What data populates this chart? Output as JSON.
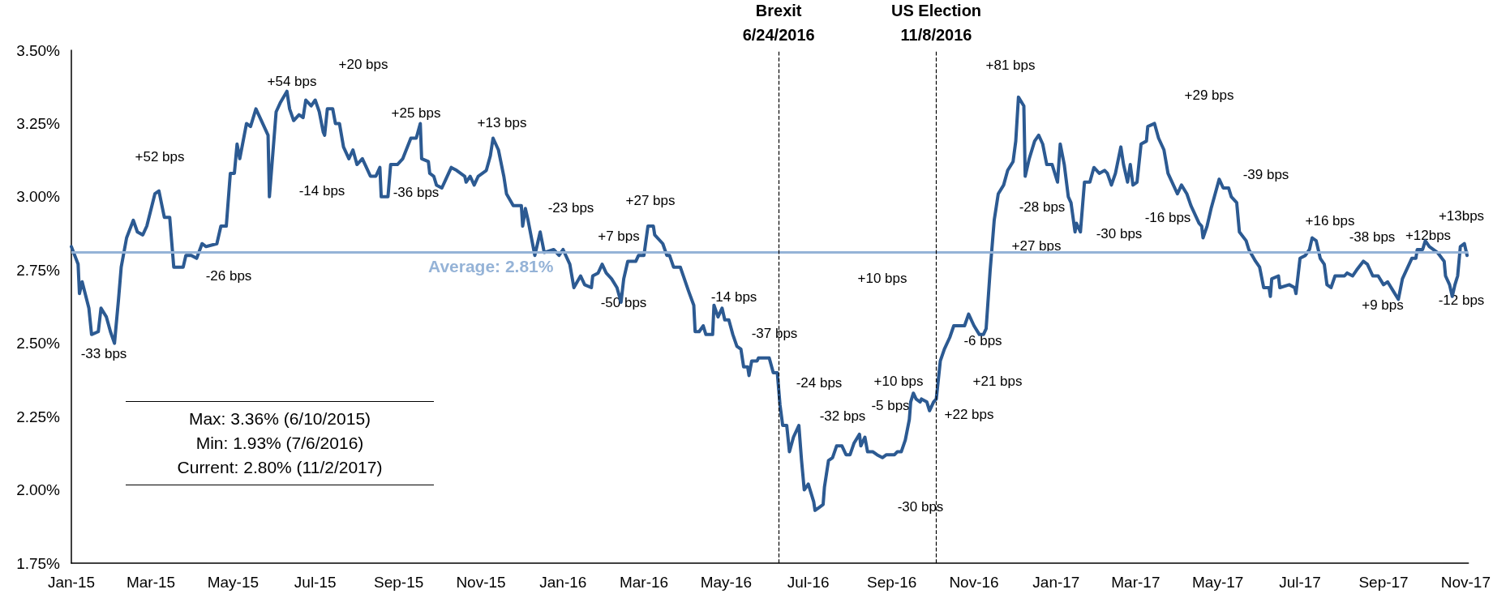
{
  "chart_data": {
    "type": "line",
    "xlim": [
      "2015-01-01",
      "2017-11-03"
    ],
    "ylim": [
      1.75,
      3.5
    ],
    "yticks": [
      {
        "value": 1.75,
        "label": "1.75%"
      },
      {
        "value": 2,
        "label": "2.00%"
      },
      {
        "value": 2.25,
        "label": "2.25%"
      },
      {
        "value": 2.5,
        "label": "2.50%"
      },
      {
        "value": 2.75,
        "label": "2.75%"
      },
      {
        "value": 3,
        "label": "3.00%"
      },
      {
        "value": 3.25,
        "label": "3.25%"
      },
      {
        "value": 3.5,
        "label": "3.50%"
      }
    ],
    "xticks": [
      {
        "value": "2015-01-01",
        "label": "Jan-15"
      },
      {
        "value": "2015-03-01",
        "label": "Mar-15"
      },
      {
        "value": "2015-05-01",
        "label": "May-15"
      },
      {
        "value": "2015-07-01",
        "label": "Jul-15"
      },
      {
        "value": "2015-09-01",
        "label": "Sep-15"
      },
      {
        "value": "2015-11-01",
        "label": "Nov-15"
      },
      {
        "value": "2016-01-01",
        "label": "Jan-16"
      },
      {
        "value": "2016-03-01",
        "label": "Mar-16"
      },
      {
        "value": "2016-05-01",
        "label": "May-16"
      },
      {
        "value": "2016-07-01",
        "label": "Jul-16"
      },
      {
        "value": "2016-09-01",
        "label": "Sep-16"
      },
      {
        "value": "2016-11-01",
        "label": "Nov-16"
      },
      {
        "value": "2017-01-01",
        "label": "Jan-17"
      },
      {
        "value": "2017-03-01",
        "label": "Mar-17"
      },
      {
        "value": "2017-05-01",
        "label": "May-17"
      },
      {
        "value": "2017-07-01",
        "label": "Jul-17"
      },
      {
        "value": "2017-09-01",
        "label": "Sep-17"
      },
      {
        "value": "2017-11-01",
        "label": "Nov-17"
      }
    ],
    "grid": false,
    "marker": "none",
    "line_style": "solid",
    "series": [
      {
        "color": "#2c5a92",
        "x": [
          "2015-01-01",
          "2015-01-06",
          "2015-01-07",
          "2015-01-09",
          "2015-01-14",
          "2015-01-16",
          "2015-01-21",
          "2015-01-23",
          "2015-01-27",
          "2015-01-30",
          "2015-02-02",
          "2015-02-05",
          "2015-02-07",
          "2015-02-11",
          "2015-02-16",
          "2015-02-19",
          "2015-02-23",
          "2015-02-26",
          "2015-03-04",
          "2015-03-07",
          "2015-03-11",
          "2015-03-15",
          "2015-03-18",
          "2015-03-25",
          "2015-03-27",
          "2015-03-31",
          "2015-04-04",
          "2015-04-08",
          "2015-04-11",
          "2015-04-19",
          "2015-04-22",
          "2015-04-26",
          "2015-04-29",
          "2015-05-02",
          "2015-05-04",
          "2015-05-06",
          "2015-05-11",
          "2015-05-14",
          "2015-05-18",
          "2015-05-21",
          "2015-05-27",
          "2015-05-28",
          "2015-06-02",
          "2015-06-05",
          "2015-06-10",
          "2015-06-12",
          "2015-06-15",
          "2015-06-19",
          "2015-06-22",
          "2015-06-24",
          "2015-06-28",
          "2015-07-01",
          "2015-07-04",
          "2015-07-07",
          "2015-07-08",
          "2015-07-10",
          "2015-07-14",
          "2015-07-16",
          "2015-07-19",
          "2015-07-22",
          "2015-07-26",
          "2015-07-29",
          "2015-08-01",
          "2015-08-05",
          "2015-08-08",
          "2015-08-11",
          "2015-08-15",
          "2015-08-18",
          "2015-08-19",
          "2015-08-24",
          "2015-08-26",
          "2015-08-31",
          "2015-09-04",
          "2015-09-10",
          "2015-09-14",
          "2015-09-17",
          "2015-09-18",
          "2015-09-23",
          "2015-09-24",
          "2015-09-27",
          "2015-09-29",
          "2015-10-03",
          "2015-10-06",
          "2015-10-10",
          "2015-10-14",
          "2015-10-20",
          "2015-10-21",
          "2015-10-24",
          "2015-10-27",
          "2015-10-30",
          "2015-11-05",
          "2015-11-08",
          "2015-11-10",
          "2015-11-14",
          "2015-11-18",
          "2015-11-20",
          "2015-11-25",
          "2015-12-01",
          "2015-12-02",
          "2015-12-04",
          "2015-12-06",
          "2015-12-11",
          "2015-12-15",
          "2015-12-18",
          "2015-12-25",
          "2015-12-29",
          "2016-01-01",
          "2016-01-06",
          "2016-01-09",
          "2016-01-14",
          "2016-01-17",
          "2016-01-22",
          "2016-01-23",
          "2016-01-27",
          "2016-01-30",
          "2016-02-02",
          "2016-02-06",
          "2016-02-10",
          "2016-02-13",
          "2016-02-15",
          "2016-02-18",
          "2016-02-24",
          "2016-02-26",
          "2016-03-01",
          "2016-03-04",
          "2016-03-08",
          "2016-03-09",
          "2016-03-15",
          "2016-03-18",
          "2016-03-20",
          "2016-03-23",
          "2016-03-28",
          "2016-03-31",
          "2016-04-03",
          "2016-04-07",
          "2016-04-08",
          "2016-04-11",
          "2016-04-14",
          "2016-04-16",
          "2016-04-21",
          "2016-04-22",
          "2016-04-25",
          "2016-04-28",
          "2016-04-30",
          "2016-05-03",
          "2016-05-06",
          "2016-05-09",
          "2016-05-12",
          "2016-05-14",
          "2016-05-17",
          "2016-05-18",
          "2016-05-20",
          "2016-05-24",
          "2016-05-25",
          "2016-06-02",
          "2016-06-05",
          "2016-06-08",
          "2016-06-10",
          "2016-06-12",
          "2016-06-15",
          "2016-06-17",
          "2016-06-20",
          "2016-06-24",
          "2016-06-26",
          "2016-06-28",
          "2016-07-01",
          "2016-07-05",
          "2016-07-06",
          "2016-07-09",
          "2016-07-12",
          "2016-07-13",
          "2016-07-16",
          "2016-07-19",
          "2016-07-22",
          "2016-07-26",
          "2016-07-29",
          "2016-08-01",
          "2016-08-04",
          "2016-08-08",
          "2016-08-09",
          "2016-08-12",
          "2016-08-14",
          "2016-08-18",
          "2016-08-21",
          "2016-08-25",
          "2016-08-28",
          "2016-09-03",
          "2016-09-05",
          "2016-09-08",
          "2016-09-11",
          "2016-09-14",
          "2016-09-15",
          "2016-09-17",
          "2016-09-19",
          "2016-09-22",
          "2016-09-23",
          "2016-09-27",
          "2016-09-29",
          "2016-10-02",
          "2016-10-04",
          "2016-10-07",
          "2016-10-10",
          "2016-10-14",
          "2016-10-17",
          "2016-10-21",
          "2016-10-25",
          "2016-10-28",
          "2016-11-01",
          "2016-11-05",
          "2016-11-08",
          "2016-11-10",
          "2016-11-13",
          "2016-11-16",
          "2016-11-19",
          "2016-11-23",
          "2016-11-26",
          "2016-11-30",
          "2016-12-02",
          "2016-12-04",
          "2016-12-08",
          "2016-12-09",
          "2016-12-12",
          "2016-12-16",
          "2016-12-19",
          "2016-12-22",
          "2016-12-25",
          "2016-12-29",
          "2017-01-02",
          "2017-01-04",
          "2017-01-07",
          "2017-01-10",
          "2017-01-12",
          "2017-01-15",
          "2017-01-16",
          "2017-01-19",
          "2017-01-22",
          "2017-01-26",
          "2017-01-29",
          "2017-02-02",
          "2017-02-06",
          "2017-02-08",
          "2017-02-11",
          "2017-02-14",
          "2017-02-18",
          "2017-02-20",
          "2017-02-23",
          "2017-02-25",
          "2017-02-27",
          "2017-03-02",
          "2017-03-05",
          "2017-03-09",
          "2017-03-10",
          "2017-03-15",
          "2017-03-18",
          "2017-03-22",
          "2017-03-25",
          "2017-03-29",
          "2017-04-01",
          "2017-04-04",
          "2017-04-08",
          "2017-04-11",
          "2017-04-13",
          "2017-04-17",
          "2017-04-19",
          "2017-04-20",
          "2017-04-23",
          "2017-04-26",
          "2017-04-29",
          "2017-05-02",
          "2017-05-05",
          "2017-05-09",
          "2017-05-11",
          "2017-05-15",
          "2017-05-17",
          "2017-05-22",
          "2017-05-24",
          "2017-05-29",
          "2017-06-01",
          "2017-06-04",
          "2017-06-08",
          "2017-06-09",
          "2017-06-10",
          "2017-06-15",
          "2017-06-16",
          "2017-06-23",
          "2017-06-27",
          "2017-06-28",
          "2017-07-01",
          "2017-07-05",
          "2017-07-08",
          "2017-07-10",
          "2017-07-13",
          "2017-07-16",
          "2017-07-19",
          "2017-07-21",
          "2017-07-24",
          "2017-07-27",
          "2017-08-03",
          "2017-08-05",
          "2017-08-09",
          "2017-08-12",
          "2017-08-17",
          "2017-08-20",
          "2017-08-24",
          "2017-08-28",
          "2017-09-01",
          "2017-09-04",
          "2017-09-08",
          "2017-09-12",
          "2017-09-15",
          "2017-09-19",
          "2017-09-22",
          "2017-09-25",
          "2017-09-26",
          "2017-09-30",
          "2017-10-02",
          "2017-10-05",
          "2017-10-11",
          "2017-10-16",
          "2017-10-17",
          "2017-10-20",
          "2017-10-22",
          "2017-10-24",
          "2017-10-26",
          "2017-10-28",
          "2017-10-31",
          "2017-11-02"
        ],
        "values": [
          2.83,
          2.77,
          2.67,
          2.71,
          2.62,
          2.53,
          2.54,
          2.62,
          2.59,
          2.54,
          2.5,
          2.65,
          2.76,
          2.86,
          2.92,
          2.88,
          2.87,
          2.9,
          3.01,
          3.02,
          2.93,
          2.93,
          2.76,
          2.76,
          2.8,
          2.8,
          2.79,
          2.84,
          2.83,
          2.84,
          2.9,
          2.9,
          3.08,
          3.08,
          3.18,
          3.13,
          3.25,
          3.24,
          3.3,
          3.27,
          3.21,
          3.0,
          3.29,
          3.32,
          3.36,
          3.3,
          3.26,
          3.28,
          3.27,
          3.33,
          3.31,
          3.33,
          3.29,
          3.22,
          3.21,
          3.3,
          3.3,
          3.25,
          3.25,
          3.17,
          3.13,
          3.16,
          3.11,
          3.13,
          3.1,
          3.07,
          3.07,
          3.1,
          3.0,
          3.0,
          3.11,
          3.11,
          3.13,
          3.2,
          3.2,
          3.25,
          3.13,
          3.12,
          3.08,
          3.07,
          3.04,
          3.03,
          3.06,
          3.1,
          3.09,
          3.07,
          3.05,
          3.07,
          3.04,
          3.07,
          3.09,
          3.14,
          3.2,
          3.16,
          3.07,
          3.01,
          2.97,
          2.97,
          2.9,
          2.96,
          2.92,
          2.8,
          2.88,
          2.81,
          2.82,
          2.8,
          2.82,
          2.77,
          2.69,
          2.73,
          2.7,
          2.69,
          2.73,
          2.74,
          2.77,
          2.74,
          2.72,
          2.69,
          2.64,
          2.72,
          2.78,
          2.78,
          2.8,
          2.8,
          2.9,
          2.9,
          2.87,
          2.84,
          2.8,
          2.8,
          2.76,
          2.76,
          2.72,
          2.68,
          2.63,
          2.54,
          2.54,
          2.56,
          2.53,
          2.53,
          2.63,
          2.59,
          2.62,
          2.58,
          2.58,
          2.53,
          2.49,
          2.48,
          2.42,
          2.42,
          2.39,
          2.44,
          2.44,
          2.45,
          2.45,
          2.4,
          2.4,
          2.29,
          2.22,
          2.22,
          2.13,
          2.18,
          2.22,
          2.1,
          2.0,
          2.02,
          1.96,
          1.93,
          1.94,
          1.95,
          2.01,
          2.1,
          2.11,
          2.15,
          2.15,
          2.12,
          2.12,
          2.16,
          2.19,
          2.15,
          2.18,
          2.13,
          2.13,
          2.12,
          2.11,
          2.12,
          2.12,
          2.13,
          2.13,
          2.17,
          2.24,
          2.3,
          2.33,
          2.31,
          2.3,
          2.31,
          2.3,
          2.27,
          2.3,
          2.31,
          2.44,
          2.48,
          2.52,
          2.56,
          2.56,
          2.56,
          2.6,
          2.56,
          2.53,
          2.53,
          2.55,
          2.75,
          2.92,
          3.01,
          3.04,
          3.09,
          3.12,
          3.19,
          3.34,
          3.31,
          3.07,
          3.13,
          3.19,
          3.21,
          3.18,
          3.11,
          3.11,
          3.05,
          3.18,
          3.11,
          3.0,
          2.98,
          2.88,
          2.91,
          2.88,
          3.05,
          3.05,
          3.1,
          3.08,
          3.09,
          3.08,
          3.04,
          3.08,
          3.17,
          3.11,
          3.05,
          3.11,
          3.04,
          3.05,
          3.18,
          3.19,
          3.24,
          3.25,
          3.2,
          3.16,
          3.08,
          3.04,
          3.01,
          3.04,
          3.01,
          2.97,
          2.95,
          2.91,
          2.9,
          2.86,
          2.9,
          2.96,
          3.01,
          3.06,
          3.03,
          3.03,
          3.0,
          2.98,
          2.88,
          2.85,
          2.82,
          2.78,
          2.76,
          2.69,
          2.69,
          2.66,
          2.72,
          2.73,
          2.69,
          2.7,
          2.69,
          2.67,
          2.79,
          2.8,
          2.82,
          2.86,
          2.85,
          2.79,
          2.77,
          2.7,
          2.69,
          2.73,
          2.73,
          2.74,
          2.73,
          2.75,
          2.78,
          2.77,
          2.73,
          2.73,
          2.7,
          2.71,
          2.68,
          2.65,
          2.72,
          2.76,
          2.79,
          2.79,
          2.82,
          2.82,
          2.85,
          2.83,
          2.81,
          2.78,
          2.73,
          2.7,
          2.66,
          2.7,
          2.73,
          2.83,
          2.84,
          2.8
        ]
      }
    ],
    "ref_lines": [
      {
        "axis": "y",
        "value": 2.81,
        "label": "Average: 2.81%",
        "color": "#95b3d7",
        "line_style": "solid"
      },
      {
        "axis": "x",
        "value": "2016-06-09",
        "label": "Brexit\n6/24/2016",
        "color": "#000000",
        "line_style": "dashed"
      },
      {
        "axis": "x",
        "value": "2016-10-04",
        "label": "US Election\n11/8/2016",
        "color": "#000000",
        "line_style": "dashed"
      }
    ],
    "annotations": [
      "Max: 3.36% (6/10/2015)\nMin: 1.93% (7/6/2016)\nCurrent: 2.80% (11/2/2017)",
      "-33 bps",
      "+52 bps",
      "-26 bps",
      "+54 bps",
      "+20 bps",
      "-14 bps",
      "+25 bps",
      "-36 bps",
      "+13 bps",
      "-23 bps",
      "+7 bps",
      "+27 bps",
      "-50 bps",
      "-14 bps",
      "-37 bps",
      "+10 bps",
      "-24 bps",
      "-32 bps",
      "-5 bps",
      "+10 bps",
      "-30 bps",
      "+22 bps",
      "-6 bps",
      "+21 bps",
      "+27 bps",
      "+81 bps",
      "-28 bps",
      "-30 bps",
      "+29 bps",
      "-16 bps",
      "-39 bps",
      "+16 bps",
      "-38 bps",
      "+9 bps",
      "+12bps",
      "+13bps",
      "-12 bps"
    ]
  }
}
